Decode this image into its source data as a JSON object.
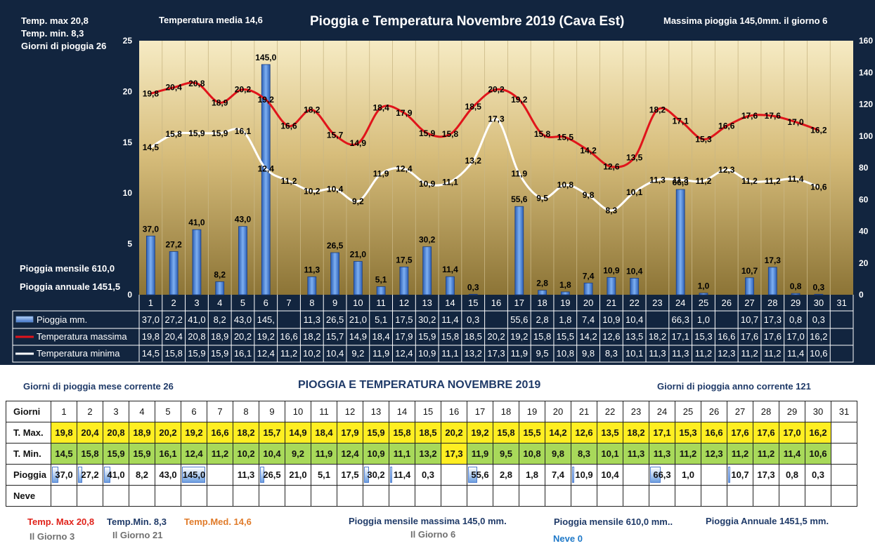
{
  "header": {
    "temp_max": "Temp. max 20,8",
    "temp_min": "Temp. min. 8,3",
    "giorni_pioggia": "Giorni di pioggia 26",
    "temp_media": "Temperatura media 14,6",
    "title": "Pioggia e Temperatura Novembre 2019 (Cava Est)",
    "massima_pioggia": "Massima pioggia 145,0mm. il giorno 6",
    "pioggia_mensile": "Pioggia mensile 610,0",
    "pioggia_annuale": "Pioggia annuale 1451,5"
  },
  "chart_data": {
    "type": "bar",
    "title": "Pioggia e Temperatura Novembre 2019 (Cava Est)",
    "categories": [
      "1",
      "2",
      "3",
      "4",
      "5",
      "6",
      "7",
      "8",
      "9",
      "10",
      "11",
      "12",
      "13",
      "14",
      "15",
      "16",
      "17",
      "18",
      "19",
      "20",
      "21",
      "22",
      "23",
      "24",
      "25",
      "26",
      "27",
      "28",
      "29",
      "30",
      "31"
    ],
    "y_left": {
      "min": 0,
      "max": 25,
      "ticks": [
        0,
        5,
        10,
        15,
        20,
        25
      ]
    },
    "y_right": {
      "min": 0,
      "max": 160,
      "ticks": [
        0,
        20,
        40,
        60,
        80,
        100,
        120,
        140,
        160
      ]
    },
    "series": [
      {
        "name": "Pioggia mm.",
        "type": "bar",
        "axis": "right",
        "color": "#4f84d8",
        "values": [
          37.0,
          27.2,
          41.0,
          8.2,
          43.0,
          145.0,
          null,
          11.3,
          26.5,
          21.0,
          5.1,
          17.5,
          30.2,
          11.4,
          0.3,
          null,
          55.6,
          2.8,
          1.8,
          7.4,
          10.9,
          10.4,
          null,
          66.3,
          1.0,
          null,
          10.7,
          17.3,
          0.8,
          0.3,
          null
        ],
        "labels": [
          "37,0",
          "27,2",
          "41,0",
          "8,2",
          "43,0",
          "145,0",
          "",
          "11,3",
          "26,5",
          "21,0",
          "5,1",
          "17,5",
          "30,2",
          "11,4",
          "0,3",
          "",
          "55,6",
          "2,8",
          "1,8",
          "7,4",
          "10,9",
          "10,4",
          "",
          "66,3",
          "1,0",
          "",
          "10,7",
          "17,3",
          "0,8",
          "0,3",
          ""
        ]
      },
      {
        "name": "Temperatura massima",
        "type": "line",
        "axis": "left",
        "color": "#e0141b",
        "values": [
          19.8,
          20.4,
          20.8,
          18.9,
          20.2,
          19.2,
          16.6,
          18.2,
          15.7,
          14.9,
          18.4,
          17.9,
          15.9,
          15.8,
          18.5,
          20.2,
          19.2,
          15.8,
          15.5,
          14.2,
          12.6,
          13.5,
          18.2,
          17.1,
          15.3,
          16.6,
          17.6,
          17.6,
          17.0,
          16.2,
          null
        ],
        "labels": [
          "19,8",
          "20,4",
          "20,8",
          "18,9",
          "20,2",
          "19,2",
          "16,6",
          "18,2",
          "15,7",
          "14,9",
          "18,4",
          "17,9",
          "15,9",
          "15,8",
          "18,5",
          "20,2",
          "19,2",
          "15,8",
          "15,5",
          "14,2",
          "12,6",
          "13,5",
          "18,2",
          "17,1",
          "15,3",
          "16,6",
          "17,6",
          "17,6",
          "17,0",
          "16,2",
          ""
        ]
      },
      {
        "name": "Temperatura minima",
        "type": "line",
        "axis": "left",
        "color": "#ffffff",
        "values": [
          14.5,
          15.8,
          15.9,
          15.9,
          16.1,
          12.4,
          11.2,
          10.2,
          10.4,
          9.2,
          11.9,
          12.4,
          10.9,
          11.1,
          13.2,
          17.3,
          11.9,
          9.5,
          10.8,
          9.8,
          8.3,
          10.1,
          11.3,
          11.3,
          11.2,
          12.3,
          11.2,
          11.2,
          11.4,
          10.6,
          null
        ],
        "labels": [
          "14,5",
          "15,8",
          "15,9",
          "15,9",
          "16,1",
          "12,4",
          "11,2",
          "10,2",
          "10,4",
          "9,2",
          "11,9",
          "12,4",
          "10,9",
          "11,1",
          "13,2",
          "17,3",
          "11,9",
          "9,5",
          "10,8",
          "9,8",
          "8,3",
          "10,1",
          "11,3",
          "11,3",
          "11,2",
          "12,3",
          "11,2",
          "11,2",
          "11,4",
          "10,6",
          ""
        ]
      }
    ],
    "table_cells": {
      "rain": [
        "37,0",
        "27,2",
        "41,0",
        "8,2",
        "43,0",
        "145,",
        "",
        "11,3",
        "26,5",
        "21,0",
        "5,1",
        "17,5",
        "30,2",
        "11,4",
        "0,3",
        "",
        "55,6",
        "2,8",
        "1,8",
        "7,4",
        "10,9",
        "10,4",
        "",
        "66,3",
        "1,0",
        "",
        "10,7",
        "17,3",
        "0,8",
        "0,3",
        ""
      ]
    }
  },
  "bottom": {
    "giorni_mese": "Giorni di pioggia mese corrente 26",
    "title": "PIOGGIA E TEMPERATURA NOVEMBRE 2019",
    "giorni_anno": "Giorni di pioggia anno corrente 121",
    "row_labels": {
      "giorni": "Giorni",
      "tmax": "T. Max.",
      "tmin": "T. Min.",
      "pioggia": "Pioggia",
      "neve": "Neve"
    },
    "days": [
      "1",
      "2",
      "3",
      "4",
      "5",
      "6",
      "7",
      "8",
      "9",
      "10",
      "11",
      "12",
      "13",
      "14",
      "15",
      "16",
      "17",
      "18",
      "19",
      "20",
      "21",
      "22",
      "23",
      "24",
      "25",
      "26",
      "27",
      "28",
      "29",
      "30",
      "31"
    ],
    "tmax": [
      "19,8",
      "20,4",
      "20,8",
      "18,9",
      "20,2",
      "19,2",
      "16,6",
      "18,2",
      "15,7",
      "14,9",
      "18,4",
      "17,9",
      "15,9",
      "15,8",
      "18,5",
      "20,2",
      "19,2",
      "15,8",
      "15,5",
      "14,2",
      "12,6",
      "13,5",
      "18,2",
      "17,1",
      "15,3",
      "16,6",
      "17,6",
      "17,6",
      "17,0",
      "16,2",
      ""
    ],
    "tmin": [
      "14,5",
      "15,8",
      "15,9",
      "15,9",
      "16,1",
      "12,4",
      "11,2",
      "10,2",
      "10,4",
      "9,2",
      "11,9",
      "12,4",
      "10,9",
      "11,1",
      "13,2",
      "17,3",
      "11,9",
      "9,5",
      "10,8",
      "9,8",
      "8,3",
      "10,1",
      "11,3",
      "11,3",
      "11,2",
      "12,3",
      "11,2",
      "11,2",
      "11,4",
      "10,6",
      ""
    ],
    "pioggia": [
      "37,0",
      "27,2",
      "41,0",
      "8,2",
      "43,0",
      "145,0",
      "",
      "11,3",
      "26,5",
      "21,0",
      "5,1",
      "17,5",
      "30,2",
      "11,4",
      "0,3",
      "",
      "55,6",
      "2,8",
      "1,8",
      "7,4",
      "10,9",
      "10,4",
      "",
      "66,3",
      "1,0",
      "",
      "10,7",
      "17,3",
      "0,8",
      "0,3",
      ""
    ],
    "pioggia_bar": [
      0.26,
      0.19,
      0.28,
      0,
      0,
      1.0,
      0,
      0,
      0.18,
      0,
      0,
      0,
      0.21,
      0.08,
      0,
      0,
      0.38,
      0,
      0,
      0,
      0.08,
      0,
      0,
      0.46,
      0,
      0,
      0.07,
      0,
      0,
      0,
      0
    ],
    "temp_max_label": "Temp. Max 20,8",
    "temp_max_giorno": "Il Giorno 3",
    "temp_min_label": "Temp.Min. 8,3",
    "temp_min_giorno": "Il Giorno 21",
    "temp_med_label": "Temp.Med. 14,6",
    "pioggia_mensile_max": "Pioggia mensile massima 145,0 mm.",
    "pioggia_max_giorno": "Il Giorno 6",
    "pioggia_mensile": "Pioggia mensile 610,0 mm..",
    "pioggia_annua": "Pioggia Annuale 1451,5 mm.",
    "neve": "Neve 0"
  }
}
